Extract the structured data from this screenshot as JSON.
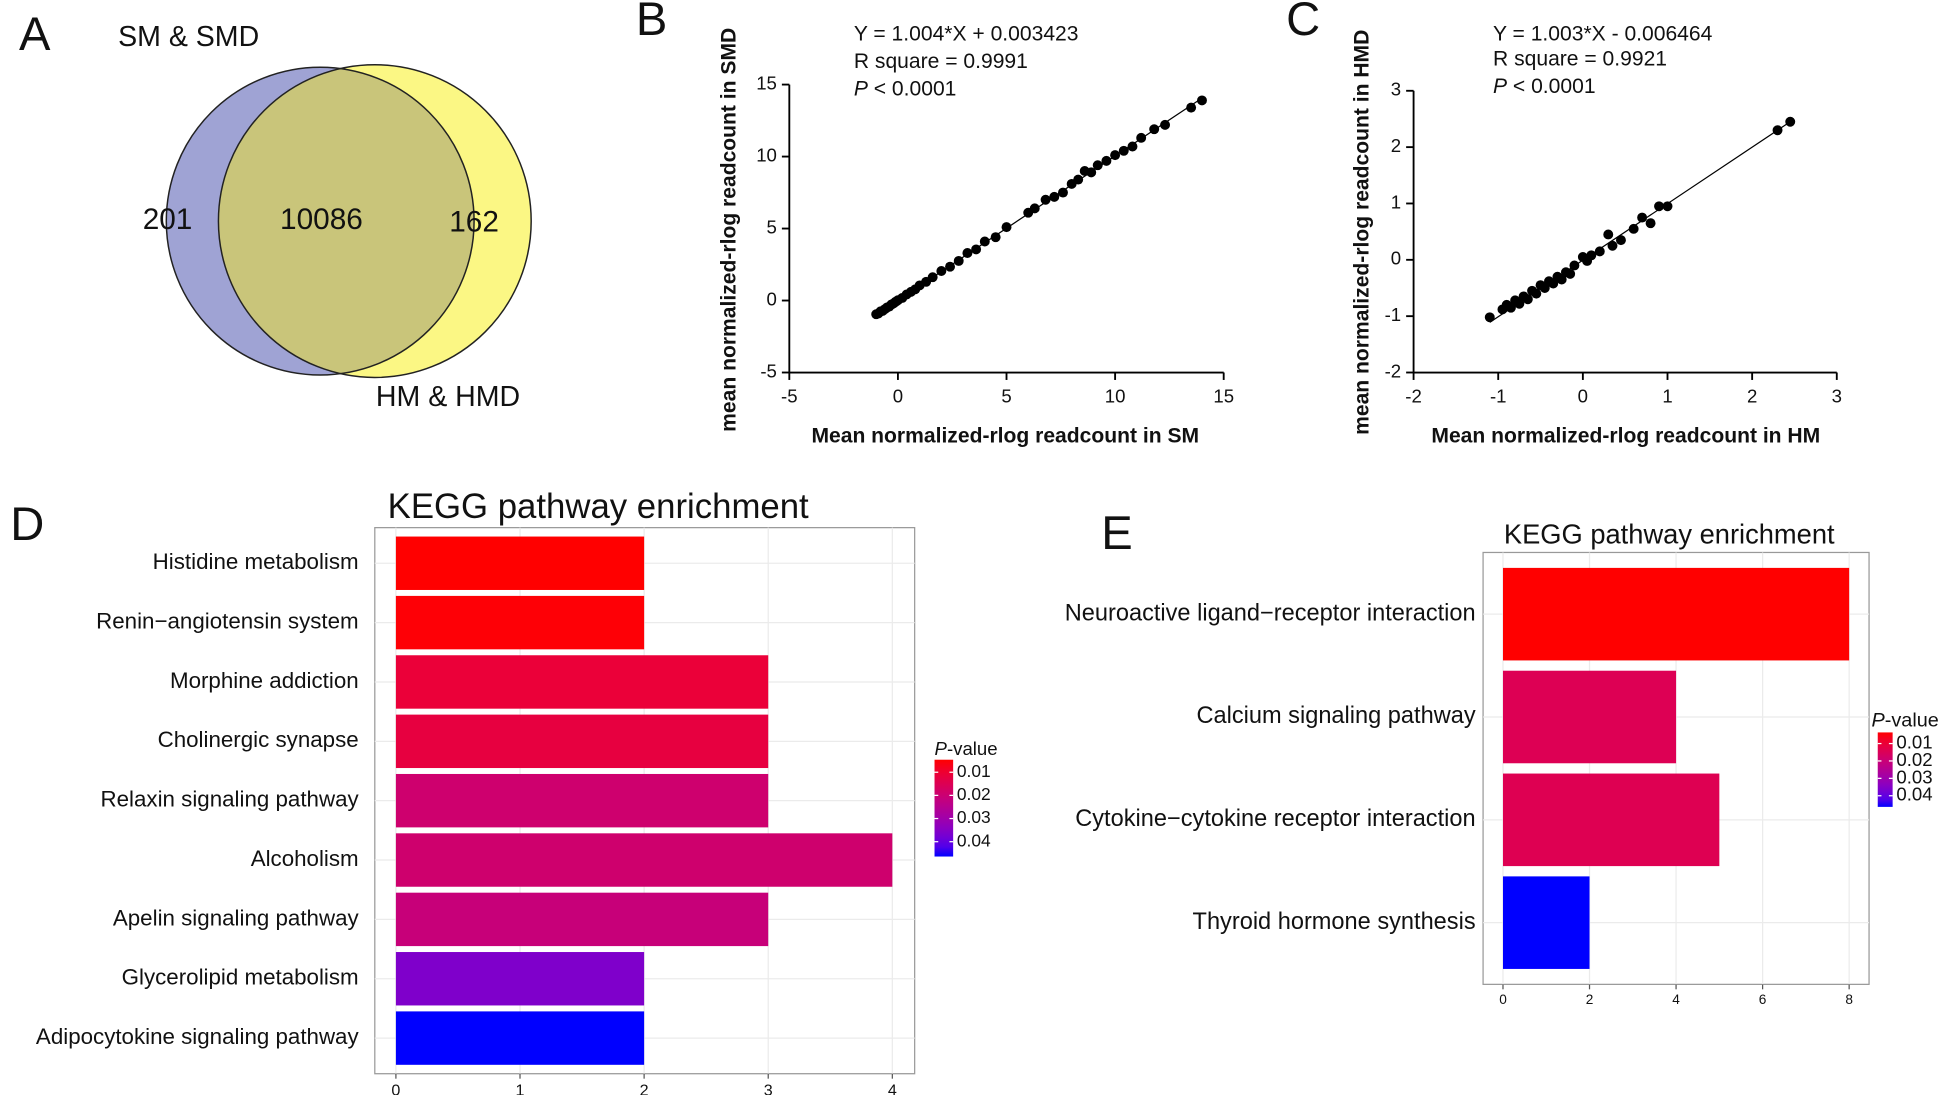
{
  "chart_data": [
    {
      "type": "venn",
      "panel": "A",
      "sets": [
        {
          "name": "SM & SMD",
          "color": "#9fa3d4"
        },
        {
          "name": "HM & HMD",
          "color": "#fbf784"
        }
      ],
      "overlap_color": "#c9c57a",
      "values": {
        "only_first": "201",
        "both": "10086",
        "only_second": "162"
      }
    },
    {
      "type": "scatter",
      "panel": "B",
      "xlabel": "Mean normalized-rlog readcount in SM",
      "ylabel": "mean normalized-rlog readcount in SMD",
      "annotations": [
        "Y = 1.004*X + 0.003423",
        "R square = 0.9991"
      ],
      "p_value": {
        "symbol": "P",
        "text": " < 0.0001"
      },
      "fit": {
        "slope": 1.004,
        "intercept": 0.003423
      },
      "color": "#000000",
      "x": [
        -1.0,
        -0.9,
        -0.8,
        -0.7,
        -0.6,
        -0.5,
        -0.4,
        -0.3,
        -0.2,
        -0.1,
        0,
        0.2,
        0.4,
        0.6,
        0.8,
        1.0,
        1.3,
        1.6,
        2.0,
        2.4,
        2.8,
        3.2,
        3.6,
        4.0,
        4.5,
        5.0,
        6.0,
        6.3,
        6.8,
        7.2,
        7.6,
        8.0,
        8.3,
        8.6,
        8.9,
        9.2,
        9.6,
        10.0,
        10.4,
        10.8,
        11.2,
        11.8,
        12.3,
        13.5,
        14.0
      ],
      "values": [
        -0.95,
        -0.9,
        -0.75,
        -0.72,
        -0.6,
        -0.48,
        -0.42,
        -0.28,
        -0.2,
        -0.08,
        0.02,
        0.18,
        0.42,
        0.6,
        0.78,
        1.05,
        1.3,
        1.62,
        2.05,
        2.35,
        2.75,
        3.3,
        3.55,
        4.1,
        4.4,
        5.1,
        6.1,
        6.4,
        7.0,
        7.2,
        7.5,
        8.1,
        8.4,
        9.0,
        8.9,
        9.4,
        9.7,
        10.1,
        10.4,
        10.7,
        11.3,
        11.9,
        12.2,
        13.4,
        13.9
      ],
      "xlim": [
        -5,
        15
      ],
      "xticks": [
        -5,
        0,
        5,
        10,
        15
      ],
      "ylim": [
        -5,
        15
      ],
      "yticks": [
        -5,
        0,
        5,
        10,
        15
      ]
    },
    {
      "type": "scatter",
      "panel": "C",
      "xlabel": "Mean normalized-rlog readcount in HM",
      "ylabel": "mean normalized-rlog readcount in  HMD",
      "annotations": [
        "Y = 1.003*X - 0.006464",
        "R square = 0.9921"
      ],
      "p_value": {
        "symbol": "P",
        "text": " < 0.0001"
      },
      "fit": {
        "slope": 1.003,
        "intercept": -0.006464
      },
      "color": "#000000",
      "x": [
        -1.1,
        -0.95,
        -0.9,
        -0.85,
        -0.8,
        -0.75,
        -0.7,
        -0.65,
        -0.6,
        -0.55,
        -0.5,
        -0.45,
        -0.4,
        -0.35,
        -0.3,
        -0.25,
        -0.2,
        -0.15,
        -0.1,
        0,
        0.05,
        0.1,
        0.2,
        0.3,
        0.35,
        0.45,
        0.6,
        0.7,
        0.8,
        0.9,
        1.0,
        2.3,
        2.45
      ],
      "values": [
        -1.02,
        -0.88,
        -0.8,
        -0.85,
        -0.72,
        -0.78,
        -0.65,
        -0.7,
        -0.55,
        -0.6,
        -0.45,
        -0.5,
        -0.38,
        -0.42,
        -0.3,
        -0.35,
        -0.22,
        -0.25,
        -0.1,
        0.05,
        -0.02,
        0.08,
        0.15,
        0.45,
        0.25,
        0.35,
        0.55,
        0.75,
        0.65,
        0.95,
        0.95,
        2.3,
        2.45
      ],
      "xlim": [
        -2,
        3
      ],
      "xticks": [
        -2,
        -1,
        0,
        1,
        2,
        3
      ],
      "ylim": [
        -2,
        3
      ],
      "yticks": [
        -2,
        -1,
        0,
        1,
        2,
        3
      ]
    },
    {
      "type": "hbar",
      "panel": "D",
      "title": "KEGG pathway enrichment",
      "categories": [
        "Histidine metabolism",
        "Renin−angiotensin system",
        "Morphine addiction",
        "Cholinergic synapse",
        "Relaxin signaling pathway",
        "Alcoholism",
        "Apelin signaling pathway",
        "Glycerolipid metabolism",
        "Adipocytokine signaling pathway"
      ],
      "values": [
        2,
        2,
        3,
        3,
        3,
        4,
        3,
        2,
        2
      ],
      "p_values": [
        0.0046,
        0.005,
        0.011,
        0.012,
        0.0192,
        0.019,
        0.021,
        0.036,
        0.0464
      ],
      "xlim": [
        -0.17,
        4.18
      ],
      "xticks": [
        0,
        1,
        2,
        3,
        4
      ],
      "legend_title": {
        "symbol": "P",
        "text": "-value"
      },
      "clim": [
        0.0046,
        0.0464
      ],
      "cticks": [
        0.01,
        0.02,
        0.03,
        0.04
      ],
      "low_color": "#ff0000",
      "high_color": "#0000ff",
      "grid": true
    },
    {
      "type": "hbar",
      "panel": "E",
      "title": "KEGG pathway enrichment",
      "categories": [
        "Neuroactive ligand−receptor interaction",
        "Calcium signaling pathway",
        "Cytokine−cytokine receptor interaction",
        "Thyroid hormone synthesis"
      ],
      "values": [
        8,
        4,
        5,
        2
      ],
      "p_values": [
        0.0036,
        0.0143,
        0.014,
        0.0464
      ],
      "xlim": [
        -0.46,
        8.46
      ],
      "xticks": [
        0,
        2,
        4,
        6,
        8
      ],
      "legend_title": {
        "symbol": "P",
        "text": "-value"
      },
      "clim": [
        0.0036,
        0.0464
      ],
      "cticks": [
        0.01,
        0.02,
        0.03,
        0.04
      ],
      "low_color": "#ff0000",
      "high_color": "#0000ff",
      "grid": true
    }
  ]
}
